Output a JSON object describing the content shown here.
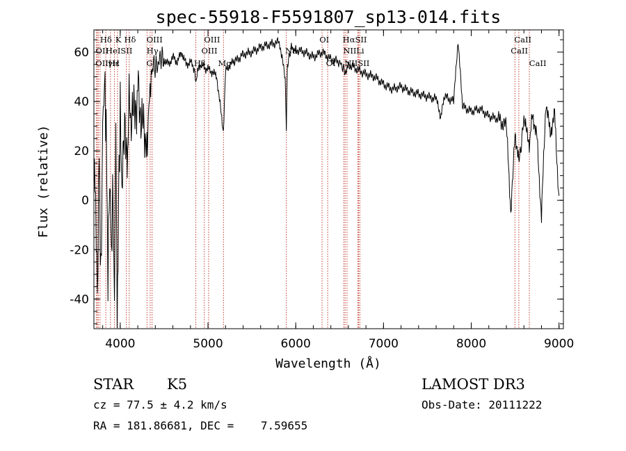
{
  "chart_data": {
    "type": "line",
    "title": "spec-55918-F5591807_sp13-014.fits",
    "xlabel": "Wavelength (Å)",
    "ylabel": "Flux (relative)",
    "xlim": [
      3700,
      9050
    ],
    "ylim": [
      -52,
      69
    ],
    "xticks": [
      4000,
      5000,
      6000,
      7000,
      8000,
      9000
    ],
    "yticks": [
      -40,
      -20,
      0,
      20,
      40,
      60
    ],
    "grid": false,
    "series": [
      {
        "name": "flux",
        "x": [
          3700,
          3720,
          3740,
          3760,
          3780,
          3800,
          3820,
          3840,
          3860,
          3880,
          3900,
          3920,
          3935,
          3950,
          3965,
          3980,
          4000,
          4020,
          4050,
          4080,
          4101,
          4120,
          4150,
          4180,
          4200,
          4230,
          4260,
          4290,
          4310,
          4320,
          4340,
          4360,
          4380,
          4420,
          4460,
          4500,
          4550,
          4600,
          4650,
          4700,
          4750,
          4800,
          4850,
          4862,
          4900,
          4950,
          5000,
          5050,
          5100,
          5150,
          5175,
          5200,
          5250,
          5300,
          5400,
          5500,
          5600,
          5700,
          5800,
          5850,
          5880,
          5893,
          5905,
          5950,
          6000,
          6100,
          6200,
          6300,
          6400,
          6500,
          6563,
          6600,
          6700,
          6800,
          6900,
          7000,
          7100,
          7200,
          7300,
          7400,
          7500,
          7600,
          7650,
          7700,
          7800,
          7850,
          7900,
          8000,
          8100,
          8200,
          8300,
          8400,
          8450,
          8498,
          8542,
          8600,
          8662,
          8700,
          8750,
          8800,
          8850,
          8900,
          8950,
          9000
        ],
        "y": [
          15,
          0,
          -40,
          20,
          -35,
          30,
          48,
          30,
          -30,
          10,
          -20,
          5,
          -40,
          20,
          -45,
          0,
          36,
          5,
          35,
          20,
          39,
          30,
          37,
          28,
          48,
          30,
          40,
          25,
          22,
          36,
          44,
          52,
          55,
          54,
          58,
          57,
          55,
          58,
          56,
          60,
          55,
          56,
          53,
          48,
          55,
          54,
          53,
          52,
          50,
          35,
          28,
          52,
          55,
          56,
          59,
          60,
          62,
          63,
          64,
          58,
          50,
          28,
          55,
          62,
          61,
          60,
          58,
          60,
          57,
          56,
          52,
          55,
          53,
          51,
          50,
          47,
          45,
          46,
          44,
          43,
          42,
          41,
          34,
          42,
          40,
          65,
          38,
          36,
          37,
          34,
          33,
          30,
          -4,
          28,
          15,
          32,
          23,
          35,
          25,
          -7,
          40,
          27,
          35,
          0
        ]
      }
    ],
    "lines": [
      {
        "name": "Hδ",
        "x": 3750
      },
      {
        "name": "OII",
        "x": 3727
      },
      {
        "name": "OII",
        "x": 3740
      },
      {
        "name": "Hε",
        "x": 3770
      },
      {
        "name": "K",
        "x": 3934
      },
      {
        "name": "HeI",
        "x": 3889
      },
      {
        "name": "Hγ",
        "x": 3836
      },
      {
        "name": "SII",
        "x": 4070
      },
      {
        "name": "H",
        "x": 3969
      },
      {
        "name": "Hδ",
        "x": 4102
      },
      {
        "name": "OIII",
        "x": 4363
      },
      {
        "name": "Hγ",
        "x": 4341
      },
      {
        "name": "G",
        "x": 4305
      },
      {
        "name": "Hβ",
        "x": 4861
      },
      {
        "name": "OIII",
        "x": 4959
      },
      {
        "name": "OIII",
        "x": 5007
      },
      {
        "name": "Mg",
        "x": 5177
      },
      {
        "name": "Na",
        "x": 5893
      },
      {
        "name": "OI",
        "x": 6300
      },
      {
        "name": "OI",
        "x": 6364
      },
      {
        "name": "Hα",
        "x": 6563
      },
      {
        "name": "NII",
        "x": 6548
      },
      {
        "name": "NII",
        "x": 6584
      },
      {
        "name": "SII",
        "x": 6717
      },
      {
        "name": "SII",
        "x": 6731
      },
      {
        "name": "Li",
        "x": 6708
      },
      {
        "name": "CaII",
        "x": 8498
      },
      {
        "name": "CaII",
        "x": 8542
      },
      {
        "name": "CaII",
        "x": 8662
      }
    ],
    "line_labels": {
      "row1": "Hδ",
      "row1b": "K",
      "row1c": "Hδ",
      "row1d": "OIII",
      "row1e": "OIII",
      "row1f": "OI",
      "row1g": "HαSII",
      "row1h": "CaII",
      "row2a": "OII",
      "row2b": "HeISII",
      "row2c": "Hγ",
      "row2d": "OIII",
      "row2e": "Na",
      "row2f": "NII",
      "row2g": "Li",
      "row2h": "CaII",
      "row3a": "OIIHε",
      "row3b": "γH",
      "row3c": "G",
      "row3d": "Hβ",
      "row3e": "Mg",
      "row3f": "OI",
      "row3g": "NIISII",
      "row3h": "CaII"
    }
  },
  "footer": {
    "class": "STAR",
    "subclass": "K5",
    "survey": "LAMOST DR3",
    "cz": "cz = 77.5 ± 4.2 km/s",
    "obs_date": "Obs-Date: 20111222",
    "radec": "RA = 181.86681, DEC =    7.59655"
  }
}
